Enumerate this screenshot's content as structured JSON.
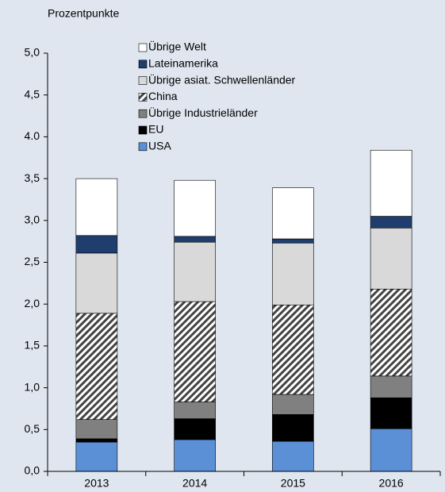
{
  "chart_data": {
    "type": "stacked_bar",
    "ylabel": "Prozentpunkte",
    "categories": [
      "2013",
      "2014",
      "2015",
      "2016"
    ],
    "series": [
      {
        "name": "USA",
        "color": "#5b8fd6",
        "values": [
          0.35,
          0.38,
          0.36,
          0.51
        ]
      },
      {
        "name": "EU",
        "color": "#000000",
        "values": [
          0.04,
          0.25,
          0.32,
          0.37
        ]
      },
      {
        "name": "Übrige Industrieländer",
        "color": "#808080",
        "values": [
          0.23,
          0.2,
          0.24,
          0.26
        ]
      },
      {
        "name": "China",
        "color": "#444444",
        "pattern": "hatch",
        "values": [
          1.27,
          1.2,
          1.07,
          1.04
        ]
      },
      {
        "name": "Übrige asiat. Schwellenländer",
        "color": "#d9d9d9",
        "values": [
          0.72,
          0.71,
          0.74,
          0.73
        ]
      },
      {
        "name": "Lateinamerika",
        "color": "#1f3e6e",
        "values": [
          0.21,
          0.07,
          0.05,
          0.14
        ]
      },
      {
        "name": "Übrige Welt",
        "color": "#ffffff",
        "values": [
          0.68,
          0.67,
          0.61,
          0.79
        ]
      }
    ],
    "ylim": [
      0,
      5
    ],
    "yticks": [
      {
        "value": 0,
        "label": "0,0"
      },
      {
        "value": 0.5,
        "label": "0,5"
      },
      {
        "value": 1,
        "label": "1,0"
      },
      {
        "value": 1.5,
        "label": "1,5"
      },
      {
        "value": 2,
        "label": "2,0"
      },
      {
        "value": 2.5,
        "label": "2,5"
      },
      {
        "value": 3,
        "label": "3,0"
      },
      {
        "value": 3.5,
        "label": "3,5"
      },
      {
        "value": 4,
        "label": "4.0"
      },
      {
        "value": 4.5,
        "label": "4,5"
      },
      {
        "value": 5,
        "label": "5,0"
      }
    ],
    "legend": "top-left"
  }
}
